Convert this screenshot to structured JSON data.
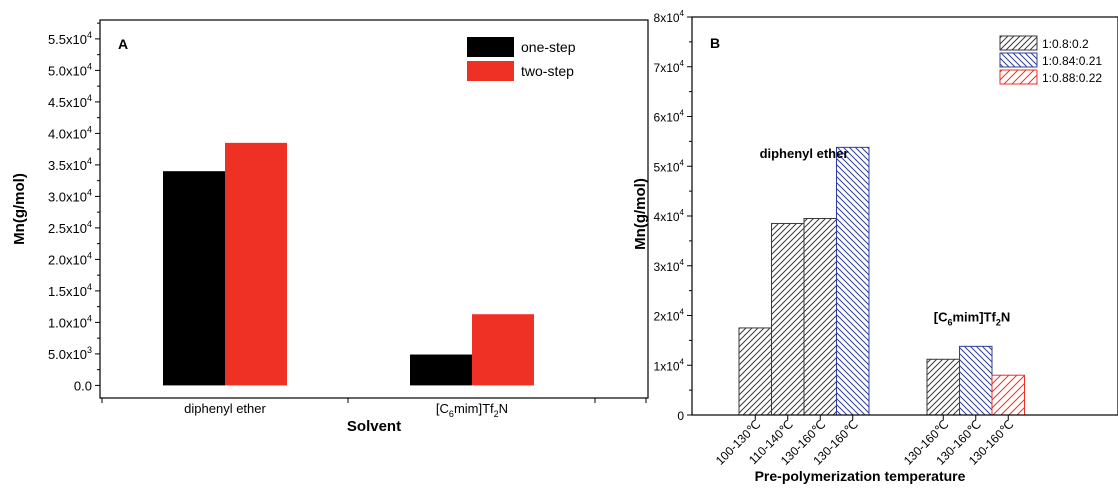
{
  "chart_data": [
    {
      "type": "bar",
      "panel_label": "A",
      "xlabel": "Solvent",
      "ylabel": "Mn(g/mol)",
      "ylim": [
        -2000,
        58000
      ],
      "categories": [
        {
          "text": "diphenyl ether"
        },
        {
          "pre": "[C",
          "sub": "6",
          "mid": "mim]Tf",
          "sub2": "2",
          "post": "N"
        }
      ],
      "series": [
        {
          "name": "one-step",
          "color": "#000000",
          "values": [
            34000,
            4900
          ]
        },
        {
          "name": "two-step",
          "color": "#ee3124",
          "values": [
            38500,
            11300
          ]
        }
      ],
      "yticks": [
        {
          "value": 0,
          "label": "0.0"
        },
        {
          "value": 5000,
          "mant": "5.0x10",
          "exp": "3"
        },
        {
          "value": 10000,
          "mant": "1.0x10",
          "exp": "4"
        },
        {
          "value": 15000,
          "mant": "1.5x10",
          "exp": "4"
        },
        {
          "value": 20000,
          "mant": "2.0x10",
          "exp": "4"
        },
        {
          "value": 25000,
          "mant": "2.5x10",
          "exp": "4"
        },
        {
          "value": 30000,
          "mant": "3.0x10",
          "exp": "4"
        },
        {
          "value": 35000,
          "mant": "3.5x10",
          "exp": "4"
        },
        {
          "value": 40000,
          "mant": "4.0x10",
          "exp": "4"
        },
        {
          "value": 45000,
          "mant": "4.5x10",
          "exp": "4"
        },
        {
          "value": 50000,
          "mant": "5.0x10",
          "exp": "4"
        },
        {
          "value": 55000,
          "mant": "5.5x10",
          "exp": "4"
        }
      ],
      "legend_position": "top-right",
      "grid": false
    },
    {
      "type": "bar",
      "panel_label": "B",
      "xlabel": "Pre-polymerization temperature",
      "ylabel": "Mn(g/mol)",
      "ylim": [
        0,
        80000
      ],
      "series": [
        {
          "name": "1:0.8:0.2",
          "color": "#3a3a3a",
          "hatch": "forward"
        },
        {
          "name": "1:0.84:0.21",
          "color": "#2e3f9e",
          "hatch": "back"
        },
        {
          "name": "1:0.88:0.22",
          "color": "#ee3124",
          "hatch": "forward"
        }
      ],
      "groups": [
        {
          "label": "diphenyl ether",
          "bars": [
            {
              "x_label": "100-130℃",
              "series": 0,
              "value": 17500
            },
            {
              "x_label": "110-140℃",
              "series": 0,
              "value": 38500
            },
            {
              "x_label": "130-160℃",
              "series": 0,
              "value": 39500
            },
            {
              "x_label": "130-160℃",
              "series": 1,
              "value": 53800
            }
          ]
        },
        {
          "label": {
            "pre": "[C",
            "sub": "6",
            "mid": "mim]Tf",
            "sub2": "2",
            "post": "N"
          },
          "bars": [
            {
              "x_label": "130-160℃",
              "series": 0,
              "value": 11200
            },
            {
              "x_label": "130-160℃",
              "series": 1,
              "value": 13800
            },
            {
              "x_label": "130-160℃",
              "series": 2,
              "value": 8000
            }
          ]
        }
      ],
      "yticks": [
        {
          "value": 0,
          "label": "0"
        },
        {
          "value": 10000,
          "mant": "1x10",
          "exp": "4"
        },
        {
          "value": 20000,
          "mant": "2x10",
          "exp": "4"
        },
        {
          "value": 30000,
          "mant": "3x10",
          "exp": "4"
        },
        {
          "value": 40000,
          "mant": "4x10",
          "exp": "4"
        },
        {
          "value": 50000,
          "mant": "5x10",
          "exp": "4"
        },
        {
          "value": 60000,
          "mant": "6x10",
          "exp": "4"
        },
        {
          "value": 70000,
          "mant": "7x10",
          "exp": "4"
        },
        {
          "value": 80000,
          "mant": "8x10",
          "exp": "4"
        }
      ],
      "legend_position": "top-right",
      "grid": false
    }
  ]
}
